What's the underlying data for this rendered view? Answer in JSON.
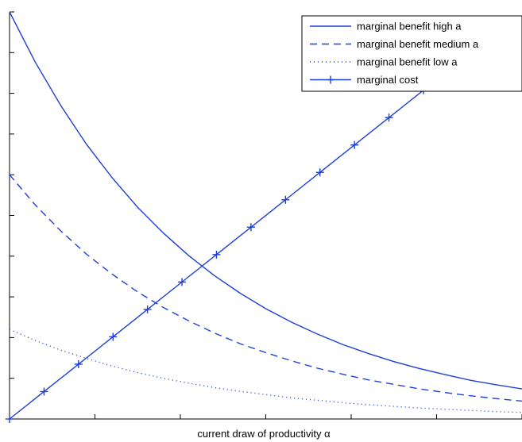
{
  "chart_data": {
    "type": "line",
    "title": "",
    "xlabel": "current draw of productivity α",
    "ylabel": "",
    "xlim": [
      0,
      1
    ],
    "ylim": [
      0,
      1
    ],
    "grid": false,
    "legend_position": "top-right",
    "x_ticks": [
      0,
      0.1667,
      0.3333,
      0.5,
      0.6667,
      0.8333,
      1
    ],
    "y_ticks": [
      0,
      0.1,
      0.2,
      0.3,
      0.4,
      0.5,
      0.6,
      0.7,
      0.8,
      0.9,
      1
    ],
    "accent_color": "#1f3fd8",
    "series": [
      {
        "name": "marginal benefit high a",
        "style": "solid",
        "x": [
          0,
          0.05,
          0.1,
          0.15,
          0.2,
          0.25,
          0.3,
          0.35,
          0.4,
          0.45,
          0.5,
          0.55,
          0.6,
          0.65,
          0.7,
          0.75,
          0.8,
          0.85,
          0.9,
          0.95,
          1
        ],
        "y": [
          1.0,
          0.877,
          0.77,
          0.675,
          0.593,
          0.52,
          0.457,
          0.401,
          0.352,
          0.309,
          0.271,
          0.238,
          0.209,
          0.183,
          0.161,
          0.141,
          0.124,
          0.109,
          0.095,
          0.084,
          0.074
        ]
      },
      {
        "name": "marginal benefit medium a",
        "style": "dashed",
        "x": [
          0,
          0.05,
          0.1,
          0.15,
          0.2,
          0.25,
          0.3,
          0.35,
          0.4,
          0.45,
          0.5,
          0.55,
          0.6,
          0.65,
          0.7,
          0.75,
          0.8,
          0.85,
          0.9,
          0.95,
          1
        ],
        "y": [
          0.6,
          0.526,
          0.462,
          0.405,
          0.356,
          0.312,
          0.274,
          0.241,
          0.211,
          0.185,
          0.163,
          0.143,
          0.125,
          0.11,
          0.096,
          0.085,
          0.074,
          0.065,
          0.057,
          0.05,
          0.044
        ]
      },
      {
        "name": "marginal benefit low a",
        "style": "dotted",
        "x": [
          0,
          0.05,
          0.1,
          0.15,
          0.2,
          0.25,
          0.3,
          0.35,
          0.4,
          0.45,
          0.5,
          0.55,
          0.6,
          0.65,
          0.7,
          0.75,
          0.8,
          0.85,
          0.9,
          0.95,
          1
        ],
        "y": [
          0.22,
          0.193,
          0.169,
          0.149,
          0.13,
          0.114,
          0.1,
          0.088,
          0.077,
          0.068,
          0.06,
          0.052,
          0.046,
          0.04,
          0.035,
          0.031,
          0.027,
          0.024,
          0.021,
          0.018,
          0.016
        ]
      },
      {
        "name": "marginal cost",
        "style": "solid-plus",
        "x": [
          0,
          0.0673,
          0.1346,
          0.2019,
          0.2692,
          0.3365,
          0.4038,
          0.4712,
          0.5385,
          0.6058,
          0.6731,
          0.7404,
          0.8077,
          0.875
        ],
        "y": [
          0,
          0.0673,
          0.1346,
          0.2019,
          0.2692,
          0.3365,
          0.4038,
          0.4712,
          0.5385,
          0.6058,
          0.6731,
          0.7404,
          0.8077,
          0.875
        ]
      }
    ]
  }
}
